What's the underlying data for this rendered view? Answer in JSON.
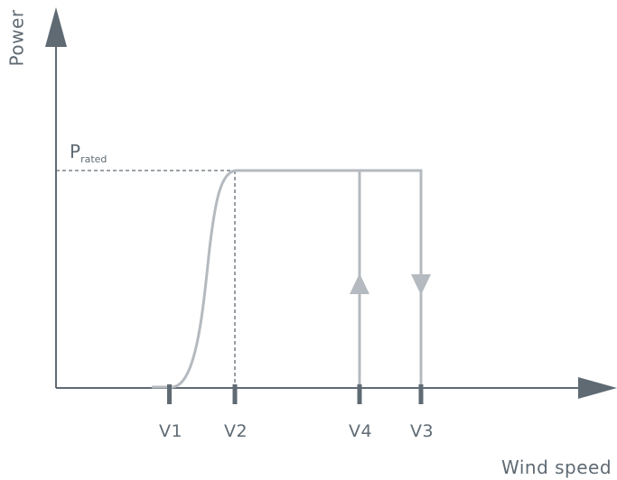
{
  "axes": {
    "y_label": "Power",
    "x_label": "Wind speed"
  },
  "rated_power": {
    "main": "P",
    "sub": "rated"
  },
  "ticks": [
    {
      "label": "V1"
    },
    {
      "label": "V2"
    },
    {
      "label": "V4"
    },
    {
      "label": "V3"
    }
  ],
  "colors": {
    "axis": "#5f6a73",
    "curve": "#b4babf",
    "text": "#5f6a73"
  }
}
